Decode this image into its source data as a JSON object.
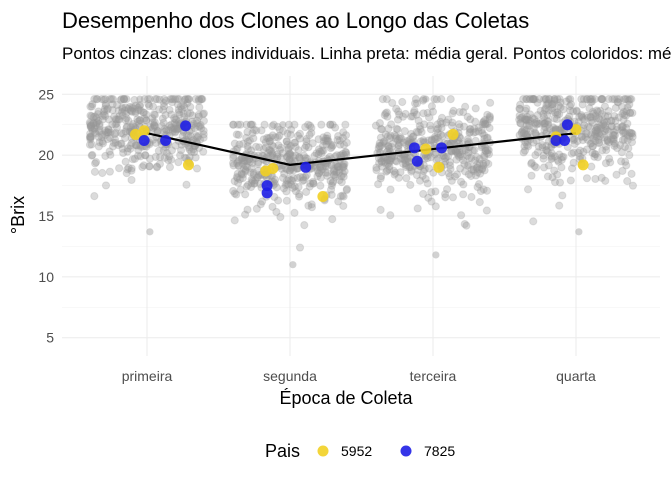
{
  "chart_data": {
    "type": "scatter",
    "title": "Desempenho dos Clones ao Longo das Coletas",
    "subtitle": "Pontos cinzas: clones individuais. Linha preta: média geral. Pontos coloridos: médias dos pais",
    "xlabel": "Época de Coleta",
    "ylabel": "°Brix",
    "categories": [
      "primeira",
      "segunda",
      "terceira",
      "quarta"
    ],
    "y_ticks": [
      5,
      10,
      15,
      20,
      25
    ],
    "ylim": [
      3.5,
      26.5
    ],
    "grid": true,
    "colors": {
      "individual": "#999999",
      "mean_line": "#000000",
      "p5952": "#F2D024",
      "p7825": "#1F1FE6"
    },
    "mean_line": {
      "x": [
        "primeira",
        "segunda",
        "terceira",
        "quarta"
      ],
      "y": [
        21.8,
        19.2,
        20.5,
        21.8
      ]
    },
    "individual_summary": [
      {
        "x": "primeira",
        "center": 22.2,
        "spread": 1.6,
        "min": 13.7,
        "max": 24.6
      },
      {
        "x": "segunda",
        "center": 19.3,
        "spread": 1.6,
        "min": 11.0,
        "max": 22.5
      },
      {
        "x": "terceira",
        "center": 20.6,
        "spread": 1.7,
        "min": 11.8,
        "max": 24.6
      },
      {
        "x": "quarta",
        "center": 22.0,
        "spread": 1.6,
        "min": 13.7,
        "max": 24.6
      }
    ],
    "series": [
      {
        "name": "5952",
        "color": "#F2D024",
        "points": [
          {
            "x": "primeira",
            "dx": -0.08,
            "y": 21.7
          },
          {
            "x": "primeira",
            "dx": -0.02,
            "y": 22.0
          },
          {
            "x": "primeira",
            "dx": 0.29,
            "y": 19.2
          },
          {
            "x": "segunda",
            "dx": -0.17,
            "y": 18.7
          },
          {
            "x": "segunda",
            "dx": -0.12,
            "y": 18.9
          },
          {
            "x": "segunda",
            "dx": 0.23,
            "y": 16.6
          },
          {
            "x": "terceira",
            "dx": -0.05,
            "y": 20.5
          },
          {
            "x": "terceira",
            "dx": 0.04,
            "y": 19.0
          },
          {
            "x": "terceira",
            "dx": 0.14,
            "y": 21.7
          },
          {
            "x": "quarta",
            "dx": -0.14,
            "y": 21.5
          },
          {
            "x": "quarta",
            "dx": 0.0,
            "y": 22.1
          },
          {
            "x": "quarta",
            "dx": 0.05,
            "y": 19.2
          }
        ]
      },
      {
        "name": "7825",
        "color": "#1F1FE6",
        "points": [
          {
            "x": "primeira",
            "dx": -0.02,
            "y": 21.2
          },
          {
            "x": "primeira",
            "dx": 0.13,
            "y": 21.2
          },
          {
            "x": "primeira",
            "dx": 0.27,
            "y": 22.4
          },
          {
            "x": "segunda",
            "dx": -0.16,
            "y": 17.5
          },
          {
            "x": "segunda",
            "dx": -0.16,
            "y": 16.9
          },
          {
            "x": "segunda",
            "dx": 0.11,
            "y": 19.0
          },
          {
            "x": "terceira",
            "dx": -0.13,
            "y": 20.6
          },
          {
            "x": "terceira",
            "dx": -0.11,
            "y": 19.5
          },
          {
            "x": "terceira",
            "dx": 0.06,
            "y": 20.6
          },
          {
            "x": "quarta",
            "dx": -0.14,
            "y": 21.2
          },
          {
            "x": "quarta",
            "dx": -0.08,
            "y": 21.2
          },
          {
            "x": "quarta",
            "dx": -0.06,
            "y": 22.5
          }
        ]
      }
    ],
    "legend": {
      "title": "Pais",
      "position": "bottom",
      "items": [
        "5952",
        "7825"
      ]
    }
  }
}
